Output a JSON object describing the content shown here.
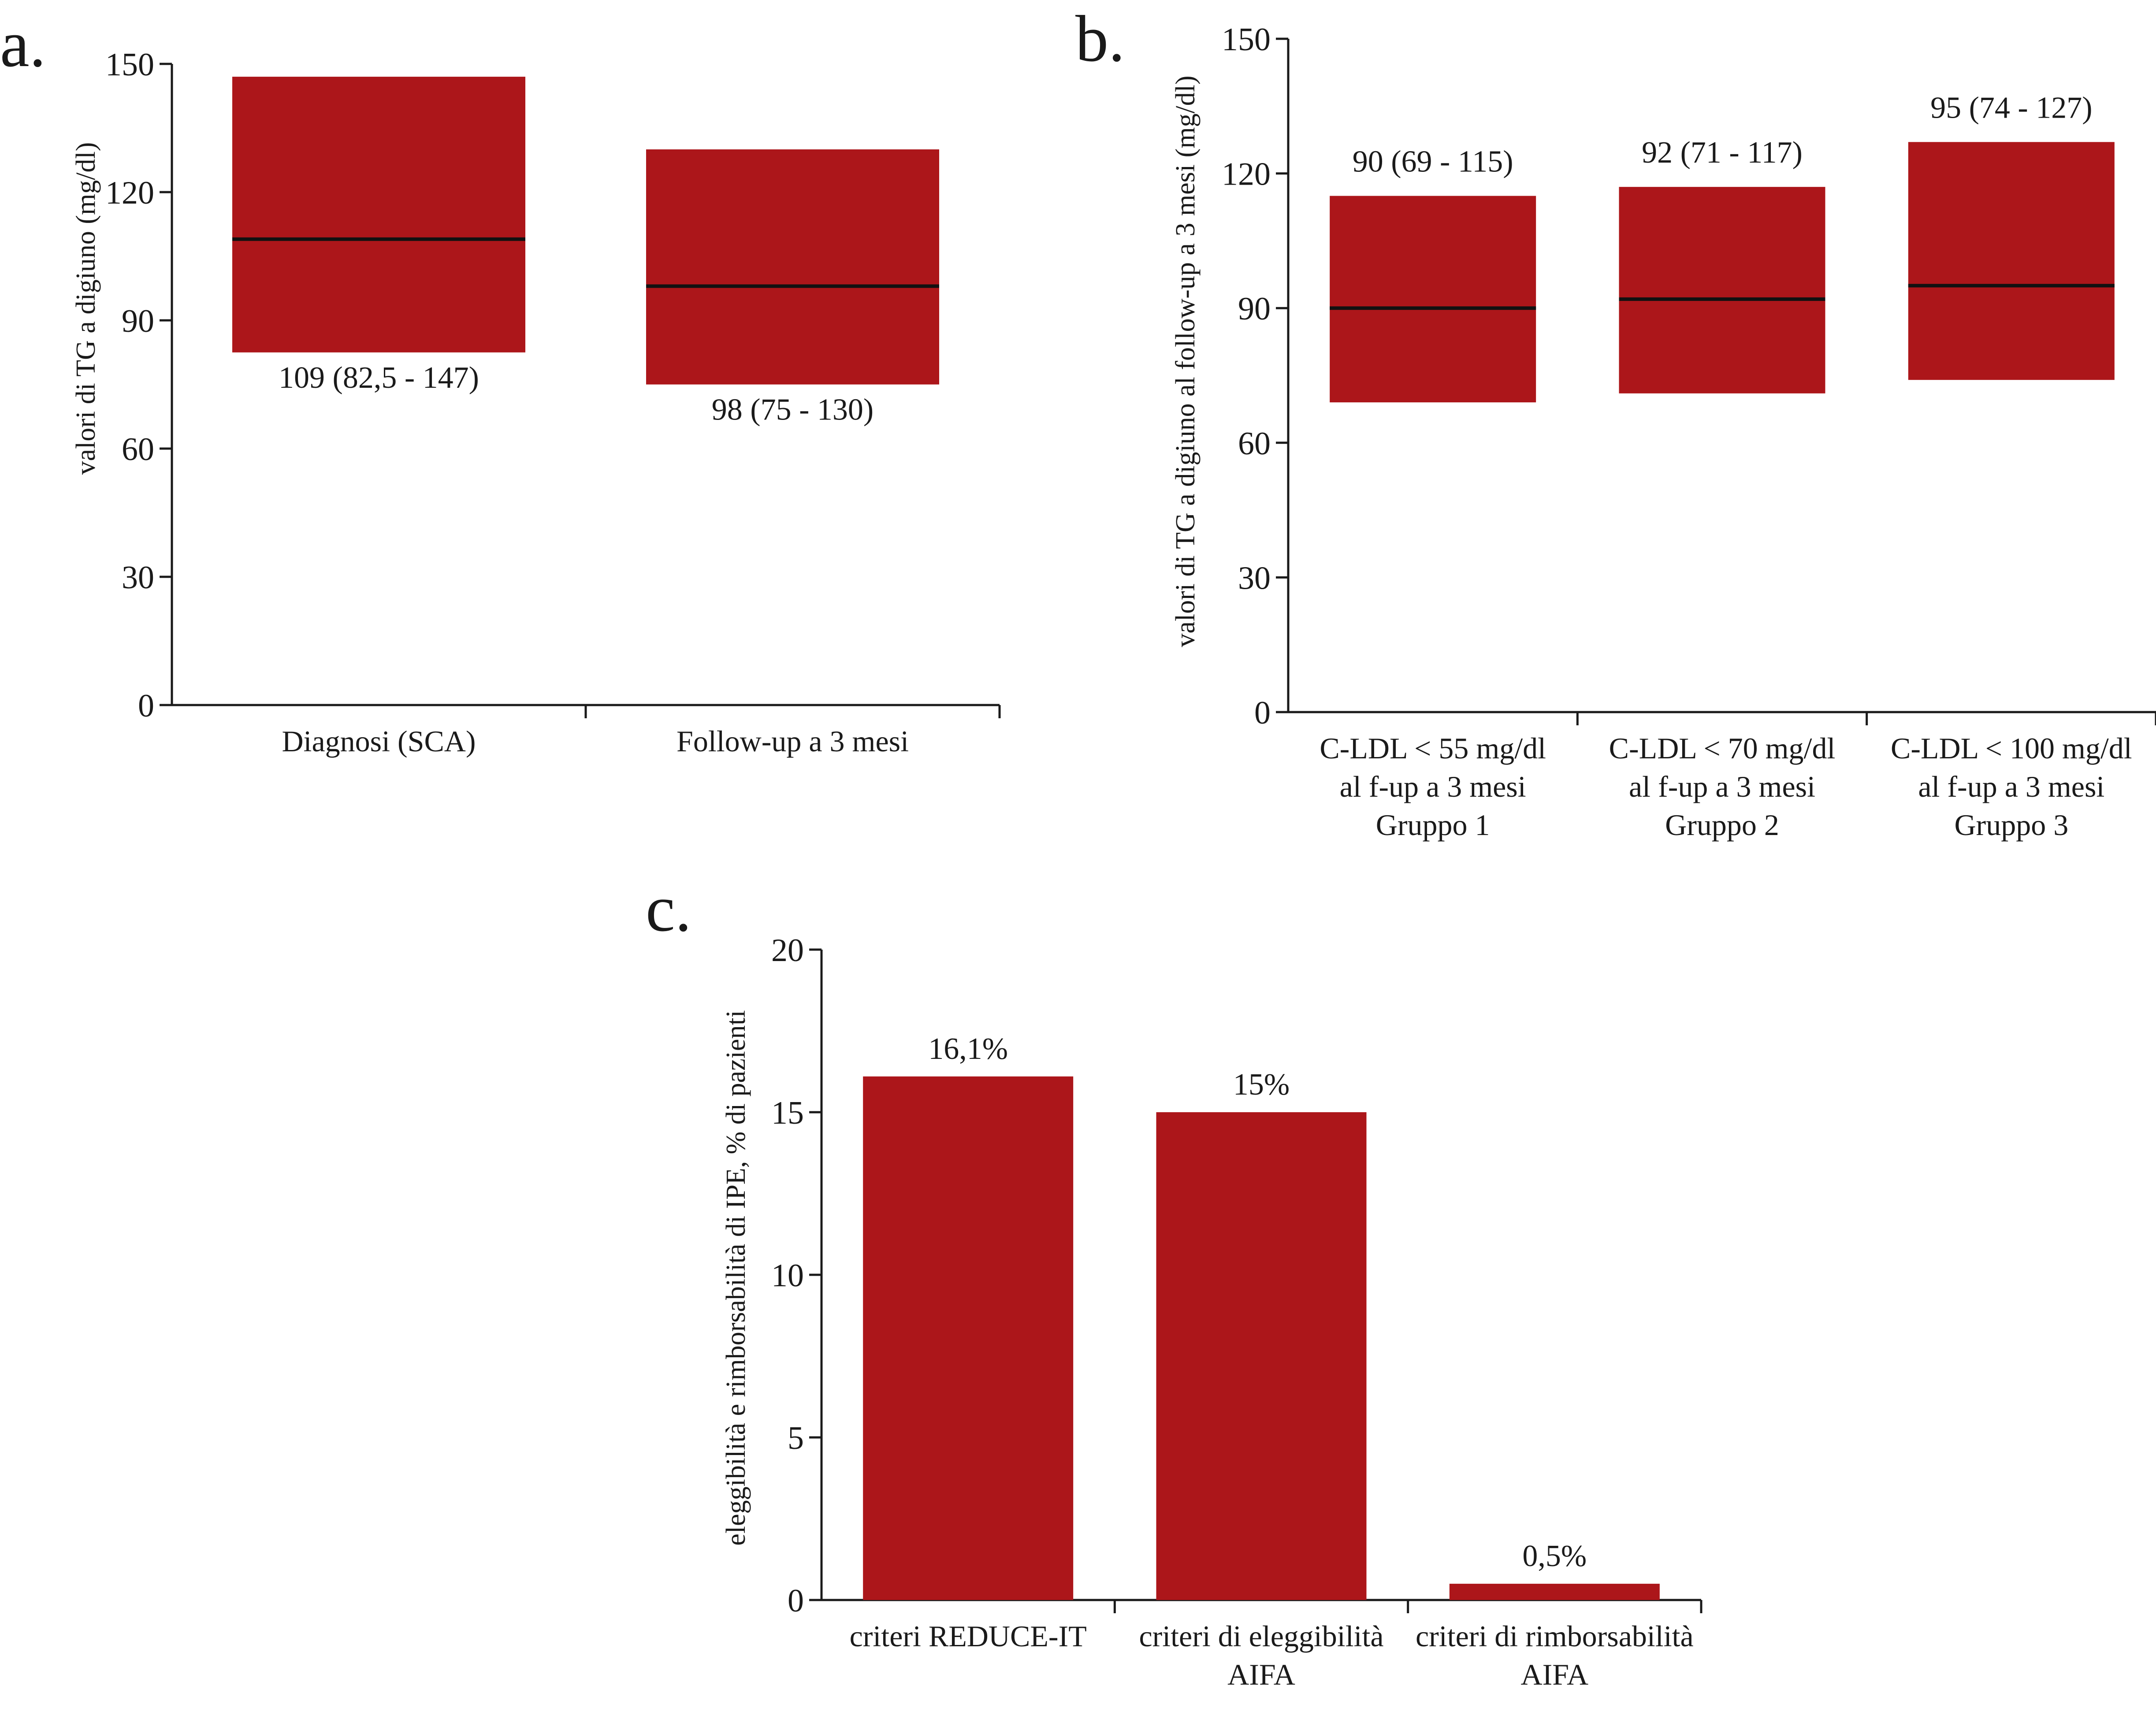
{
  "colors": {
    "bar": "#AC161A",
    "median": "#111111",
    "axis": "#1a1a1a",
    "text": "#1a1a1a"
  },
  "panels": {
    "a": {
      "letter": "a."
    },
    "b": {
      "letter": "b."
    },
    "c": {
      "letter": "c."
    }
  },
  "chart_data": [
    {
      "panel": "a",
      "type": "bar",
      "subtype": "floating median-IQR boxes",
      "ylabel": "valori di TG a digiuno (mg/dl)",
      "ylim": [
        0,
        150
      ],
      "yticks": [
        "0",
        "30",
        "60",
        "90",
        "120",
        "150"
      ],
      "categories": [
        "Diagnosi (SCA)",
        "Follow-up a 3 mesi"
      ],
      "series": [
        {
          "median": 109,
          "q1": 82.5,
          "q3": 147,
          "label": "109 (82,5 - 147)",
          "label_position": "below"
        },
        {
          "median": 98,
          "q1": 75,
          "q3": 130,
          "label": "98 (75 - 130)",
          "label_position": "below"
        }
      ]
    },
    {
      "panel": "b",
      "type": "bar",
      "subtype": "floating median-IQR boxes",
      "ylabel": "valori di TG a digiuno al follow-up a 3 mesi (mg/dl)",
      "ylim": [
        0,
        150
      ],
      "yticks": [
        "0",
        "30",
        "60",
        "90",
        "120",
        "150"
      ],
      "categories": [
        [
          "C-LDL < 55 mg/dl",
          "al f-up a 3 mesi",
          "Gruppo 1"
        ],
        [
          "C-LDL < 70 mg/dl",
          "al f-up a 3 mesi",
          "Gruppo 2"
        ],
        [
          "C-LDL < 100 mg/dl",
          "al f-up a 3 mesi",
          "Gruppo 3"
        ]
      ],
      "series": [
        {
          "median": 90,
          "q1": 69,
          "q3": 115,
          "label": "90 (69 - 115)",
          "label_position": "above"
        },
        {
          "median": 92,
          "q1": 71,
          "q3": 117,
          "label": "92 (71 - 117)",
          "label_position": "above"
        },
        {
          "median": 95,
          "q1": 74,
          "q3": 127,
          "label": "95 (74 - 127)",
          "label_position": "above"
        }
      ]
    },
    {
      "panel": "c",
      "type": "bar",
      "ylabel": "eleggibilità e rimborsabilità di IPE, % di pazienti",
      "ylim": [
        0,
        20
      ],
      "yticks": [
        "0",
        "5",
        "10",
        "15",
        "20"
      ],
      "categories": [
        [
          "criteri REDUCE-IT"
        ],
        [
          "criteri di eleggibilità",
          "AIFA"
        ],
        [
          "criteri di rimborsabilità",
          "AIFA"
        ]
      ],
      "values": [
        16.1,
        15,
        0.5
      ],
      "value_labels": [
        "16,1%",
        "15%",
        "0,5%"
      ]
    }
  ]
}
